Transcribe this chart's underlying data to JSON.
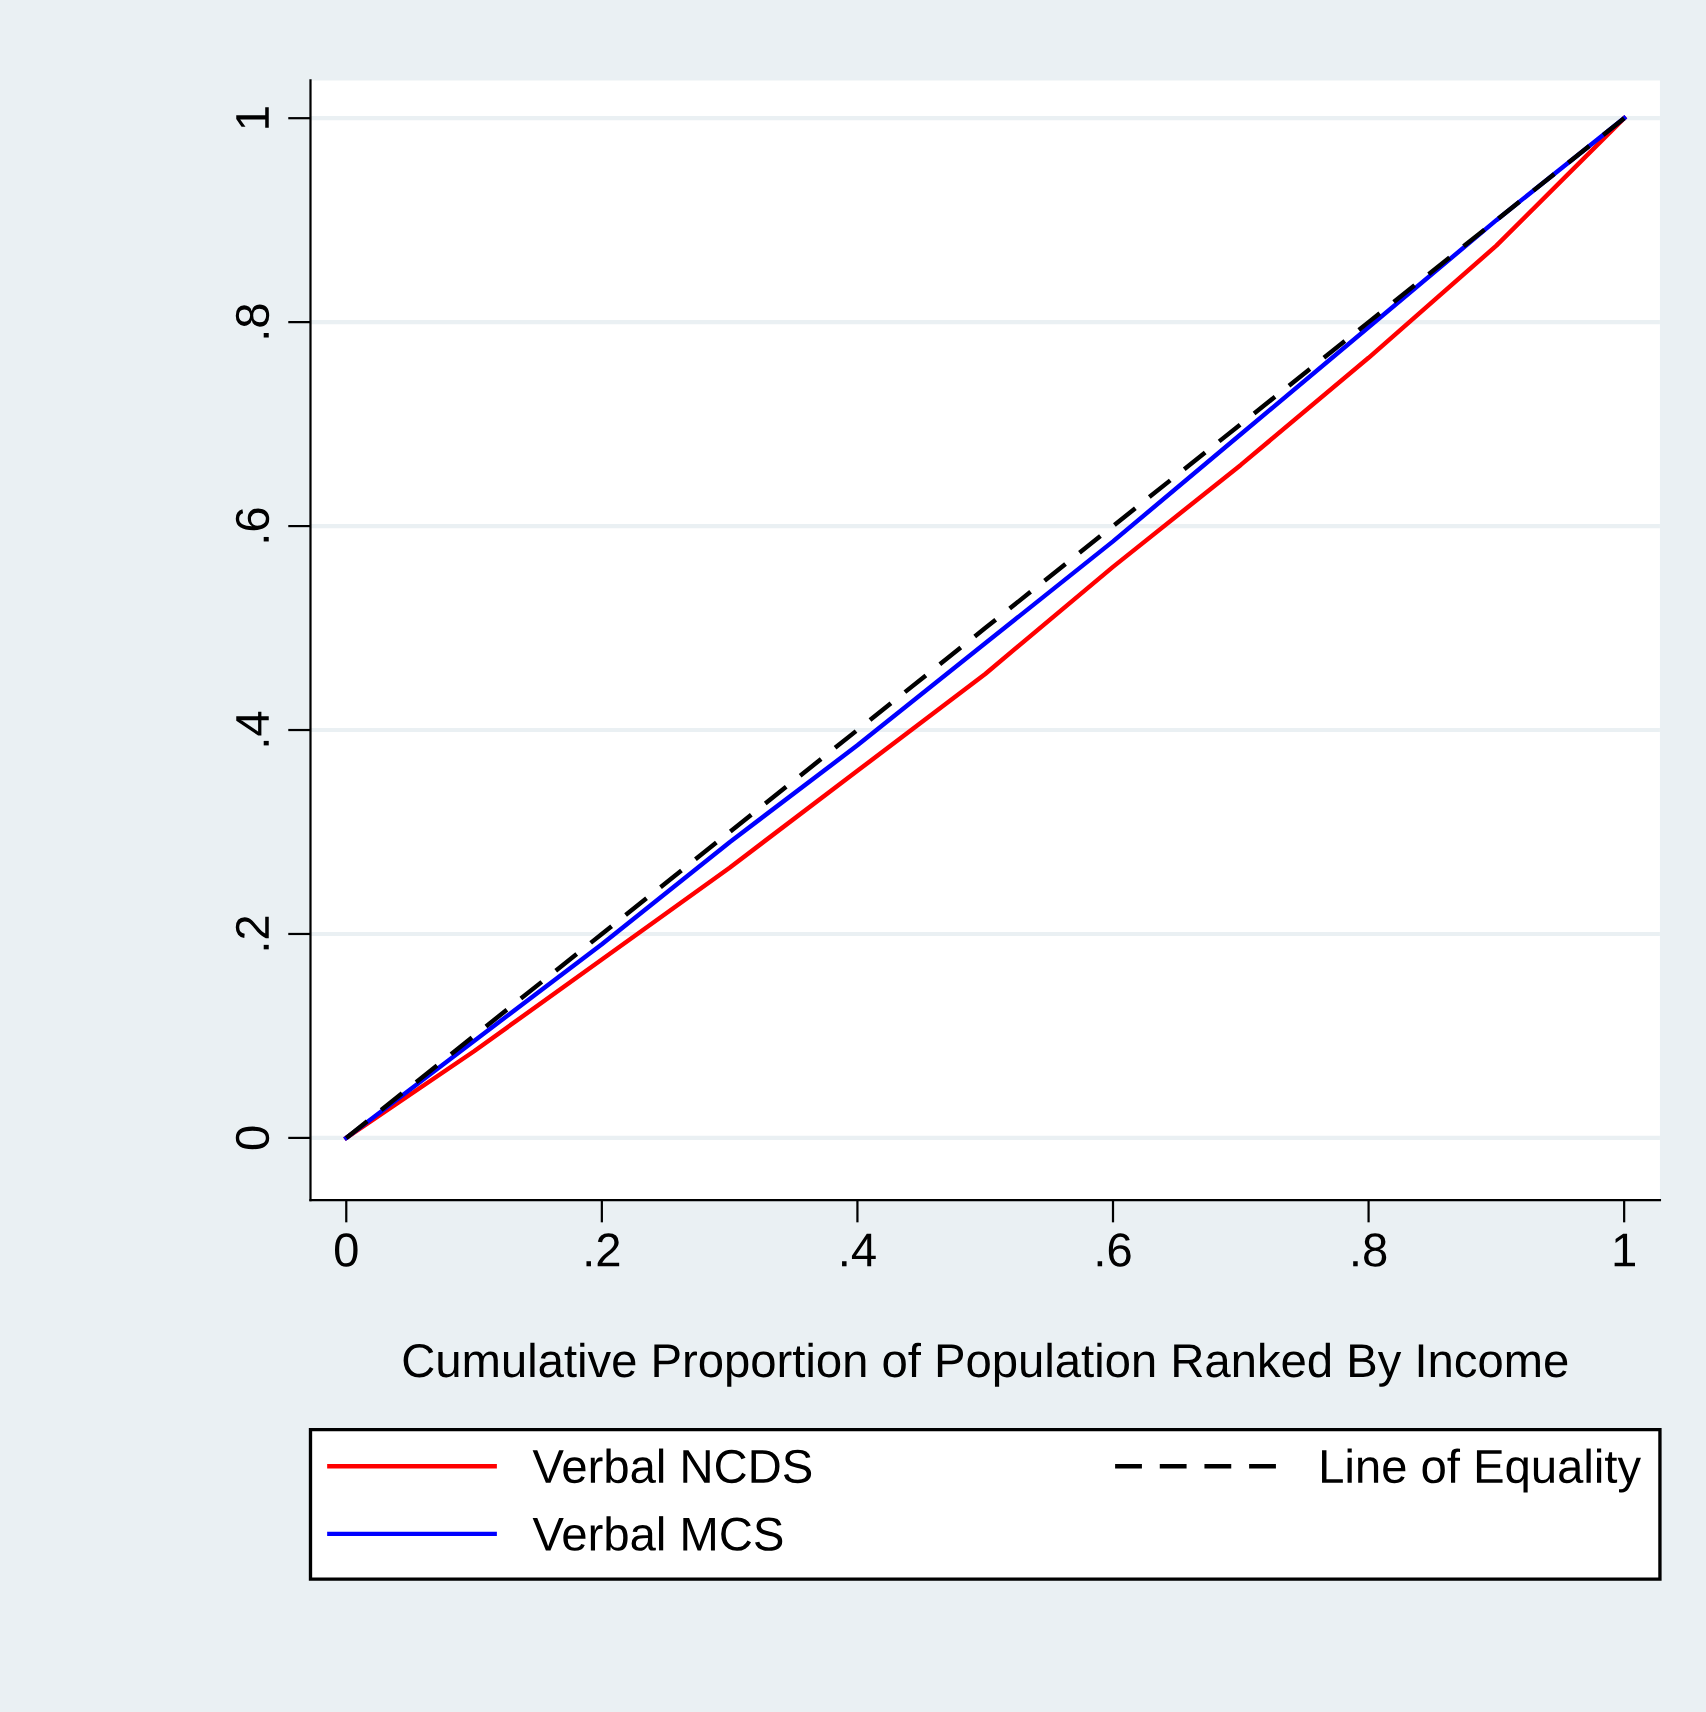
{
  "chart_data": {
    "type": "line",
    "xlabel": "Cumulative Proportion of Population Ranked By Income",
    "xlim": [
      -0.028,
      1.028
    ],
    "ylim": [
      -0.061,
      1.037
    ],
    "xticks": [
      {
        "value": 0,
        "label": "0"
      },
      {
        "value": 0.2,
        "label": ".2"
      },
      {
        "value": 0.4,
        "label": ".4"
      },
      {
        "value": 0.6,
        "label": ".6"
      },
      {
        "value": 0.8,
        "label": ".8"
      },
      {
        "value": 1,
        "label": "1"
      }
    ],
    "yticks": [
      {
        "value": 0,
        "label": "0"
      },
      {
        "value": 0.2,
        "label": ".2"
      },
      {
        "value": 0.4,
        "label": ".4"
      },
      {
        "value": 0.6,
        "label": ".6"
      },
      {
        "value": 0.8,
        "label": ".8"
      },
      {
        "value": 1,
        "label": "1"
      }
    ],
    "grid": "y",
    "legend": "bottom",
    "marker": "none",
    "x": [
      0,
      0.1,
      0.2,
      0.3,
      0.4,
      0.5,
      0.6,
      0.7,
      0.8,
      0.9,
      1
    ],
    "series": [
      {
        "name": "Verbal NCDS",
        "color": "#ff0000",
        "line_style": "solid",
        "values": [
          0,
          0.085,
          0.175,
          0.265,
          0.36,
          0.455,
          0.56,
          0.66,
          0.765,
          0.875,
          1
        ]
      },
      {
        "name": "Line of Equality",
        "color": "#000000",
        "line_style": "dashed",
        "values": [
          0,
          0.1,
          0.2,
          0.3,
          0.4,
          0.5,
          0.6,
          0.7,
          0.8,
          0.9,
          1
        ]
      },
      {
        "name": "Verbal MCS",
        "color": "#0000ff",
        "line_style": "solid",
        "values": [
          0,
          0.095,
          0.19,
          0.29,
          0.385,
          0.485,
          0.585,
          0.69,
          0.795,
          0.9,
          1
        ]
      }
    ]
  }
}
